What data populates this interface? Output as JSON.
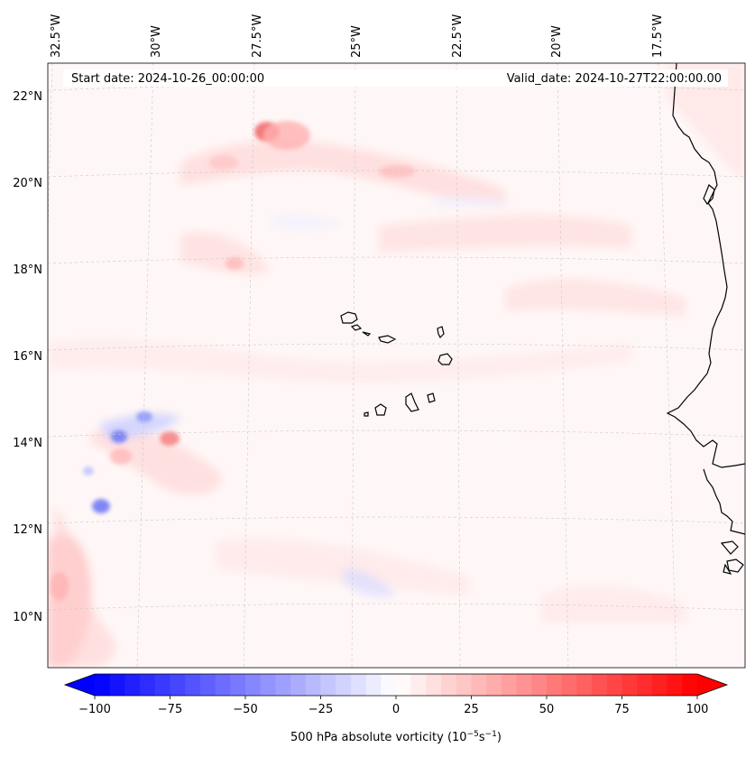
{
  "header": {
    "start_date": "Start date: 2024-10-26_00:00:00",
    "valid_date": "Valid_date: 2024-10-27T22:00:00.00"
  },
  "axes": {
    "lon_labels": [
      "32.5°W",
      "30°W",
      "27.5°W",
      "25°W",
      "22.5°W",
      "20°W",
      "17.5°W"
    ],
    "lat_labels": [
      "22°N",
      "20°N",
      "18°N",
      "16°N",
      "14°N",
      "12°N",
      "10°N"
    ]
  },
  "colorbar": {
    "ticks": [
      "−100",
      "−75",
      "−50",
      "−25",
      "0",
      "25",
      "50",
      "75",
      "100"
    ],
    "label_main": "500 hPa absolute vorticity (10",
    "label_exp1": "−5",
    "label_mid": "s",
    "label_exp2": "−1",
    "label_end": ")",
    "min": -100,
    "max": 100,
    "levels": 41
  },
  "colors": {
    "negative": "#0000ff",
    "neutral": "#ffffff",
    "positive": "#ff0000",
    "coastline": "#000000",
    "gridline": "#c8c8c8"
  }
}
